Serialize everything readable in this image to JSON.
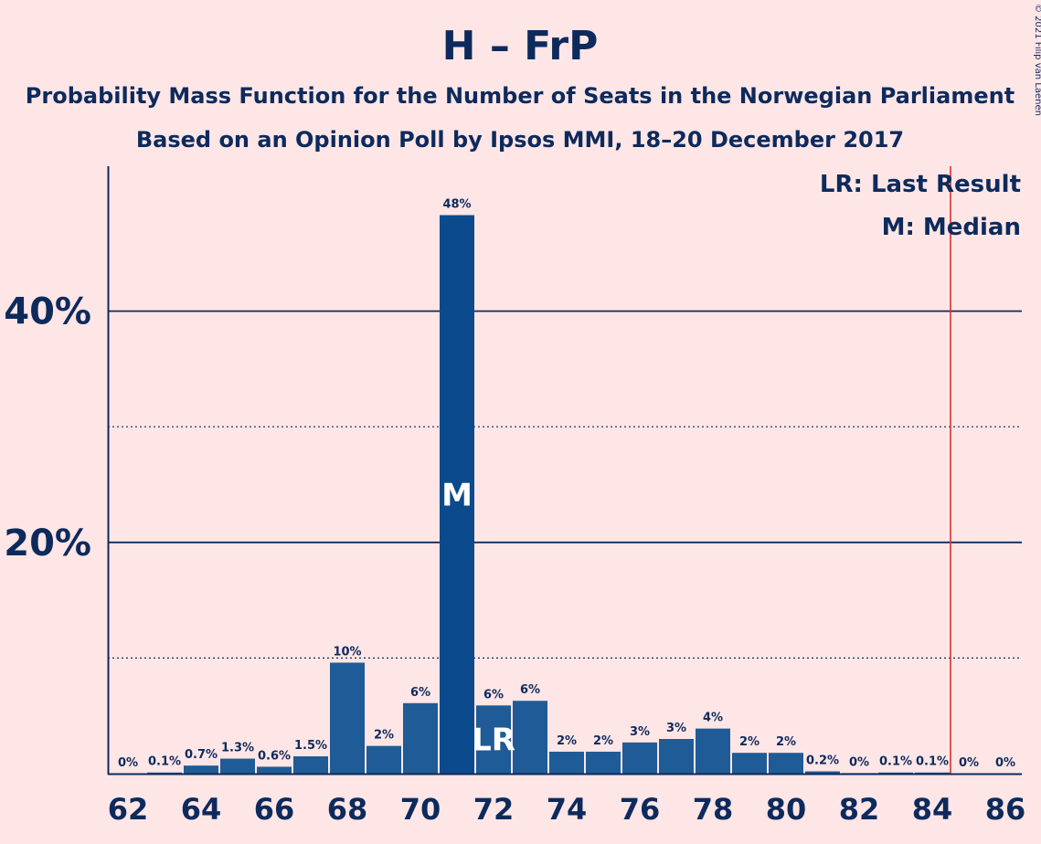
{
  "chart_data": {
    "type": "bar",
    "title": "H – FrP",
    "subtitle_lines": [
      "Probability Mass Function for the Number of Seats in the Norwegian Parliament",
      "Based on an Opinion Poll by Ipsos MMI, 18–20 December 2017"
    ],
    "copyright": "© 2021 Filip van Laenen",
    "legend": [
      "LR: Last Result",
      "M: Median"
    ],
    "categories": [
      62,
      63,
      64,
      65,
      66,
      67,
      68,
      69,
      70,
      71,
      72,
      73,
      74,
      75,
      76,
      77,
      78,
      79,
      80,
      81,
      82,
      83,
      84,
      85,
      86
    ],
    "values": [
      0,
      0.1,
      0.7,
      1.3,
      0.6,
      1.5,
      9.6,
      2.4,
      6.1,
      48.3,
      5.9,
      6.3,
      1.9,
      1.9,
      2.7,
      3.0,
      3.9,
      1.8,
      1.8,
      0.2,
      0.05,
      0.1,
      0.1,
      0,
      0
    ],
    "value_labels": [
      "0%",
      "0.1%",
      "0.7%",
      "1.3%",
      "0.6%",
      "1.5%",
      "10%",
      "2%",
      "6%",
      "48%",
      "6%",
      "6%",
      "2%",
      "2%",
      "3%",
      "3%",
      "4%",
      "2%",
      "2%",
      "0.2%",
      "0%",
      "0.1%",
      "0.1%",
      "0%",
      "0%"
    ],
    "x_tick_labels": [
      "62",
      "64",
      "66",
      "68",
      "70",
      "72",
      "74",
      "76",
      "78",
      "80",
      "82",
      "84",
      "86"
    ],
    "y_ticks": [
      {
        "value": 20,
        "label": "20%"
      },
      {
        "value": 40,
        "label": "40%"
      }
    ],
    "minor_gridlines": [
      10,
      30
    ],
    "ylim": [
      0,
      52
    ],
    "median": {
      "seats": 71,
      "label": "M"
    },
    "last_result": {
      "seats": 72,
      "label": "LR"
    },
    "majority_line": 84.5,
    "grid": true,
    "legend_position": "top-right",
    "colors": {
      "background": "#ffe6e6",
      "bar": "#1f5b96",
      "bar_highlight": "#0b4a8c",
      "text": "#0d2a5c",
      "majority_line": "#e03030"
    }
  }
}
